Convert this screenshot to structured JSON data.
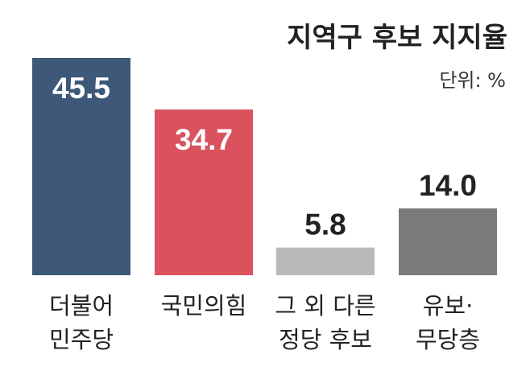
{
  "chart_data": {
    "type": "bar",
    "title": "지역구 후보 지지율",
    "unit_label": "단위: %",
    "categories": [
      [
        "더불어",
        "민주당"
      ],
      [
        "국민의힘"
      ],
      [
        "그 외 다른",
        "정당 후보"
      ],
      [
        "유보·",
        "무당층"
      ]
    ],
    "values": [
      45.5,
      34.7,
      5.8,
      14.0
    ],
    "value_labels": [
      "45.5",
      "34.7",
      "5.8",
      "14.0"
    ],
    "colors": [
      "#3d5878",
      "#d9525e",
      "#b9b9b9",
      "#7b7b7b"
    ],
    "label_colors": [
      "#ffffff",
      "#ffffff",
      "#222222",
      "#222222"
    ],
    "label_inside": [
      true,
      true,
      false,
      false
    ],
    "ylim": [
      0,
      50
    ],
    "grid": false,
    "legend": "none"
  }
}
